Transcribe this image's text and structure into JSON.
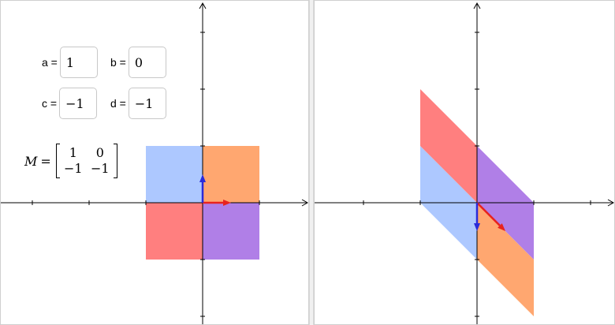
{
  "colors": {
    "top_left": "#adc8ff",
    "top_right": "#ffa770",
    "bottom_left": "#ff7f7f",
    "bottom_right": "#b07fe7",
    "vector_i": "#e8231f",
    "vector_j": "#2b2bd8",
    "axis": "#000000"
  },
  "params": {
    "a_label": "a =",
    "a_value": "1",
    "b_label": "b =",
    "b_value": "0",
    "c_label": "c =",
    "c_value": "−1",
    "d_label": "d =",
    "d_value": "−1"
  },
  "matrix": {
    "label": "M",
    "equals": "=",
    "m11": "1",
    "m12": "0",
    "m21": "−1",
    "m22": "−1"
  },
  "transform": {
    "a": 1,
    "b": 0,
    "c": -1,
    "d": -1
  }
}
